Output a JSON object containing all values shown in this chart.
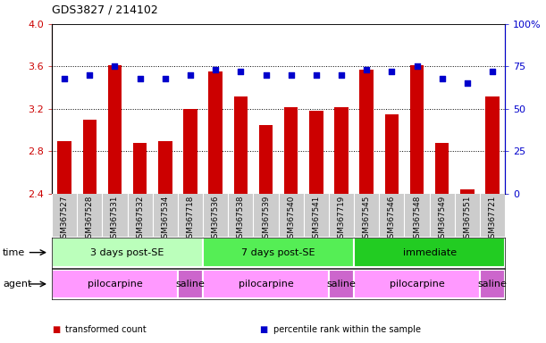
{
  "title": "GDS3827 / 214102",
  "samples": [
    "GSM367527",
    "GSM367528",
    "GSM367531",
    "GSM367532",
    "GSM367534",
    "GSM367718",
    "GSM367536",
    "GSM367538",
    "GSM367539",
    "GSM367540",
    "GSM367541",
    "GSM367719",
    "GSM367545",
    "GSM367546",
    "GSM367548",
    "GSM367549",
    "GSM367551",
    "GSM367721"
  ],
  "bar_values": [
    2.9,
    3.1,
    3.61,
    2.88,
    2.9,
    3.2,
    3.55,
    3.32,
    3.05,
    3.22,
    3.18,
    3.22,
    3.57,
    3.15,
    3.61,
    2.88,
    2.44,
    3.32
  ],
  "dot_values": [
    68,
    70,
    75,
    68,
    68,
    70,
    73,
    72,
    70,
    70,
    70,
    70,
    73,
    72,
    75,
    68,
    65,
    72
  ],
  "bar_color": "#cc0000",
  "dot_color": "#0000cc",
  "ylim_left": [
    2.4,
    4.0
  ],
  "ylim_right": [
    0,
    100
  ],
  "yticks_left": [
    2.4,
    2.8,
    3.2,
    3.6,
    4.0
  ],
  "yticks_right": [
    0,
    25,
    50,
    75,
    100
  ],
  "hlines": [
    2.8,
    3.2,
    3.6
  ],
  "time_groups": [
    {
      "label": "3 days post-SE",
      "start": 0,
      "end": 5,
      "color": "#bbffbb"
    },
    {
      "label": "7 days post-SE",
      "start": 6,
      "end": 11,
      "color": "#55ee55"
    },
    {
      "label": "immediate",
      "start": 12,
      "end": 17,
      "color": "#22cc22"
    }
  ],
  "agent_groups": [
    {
      "label": "pilocarpine",
      "start": 0,
      "end": 4,
      "color": "#ff99ff"
    },
    {
      "label": "saline",
      "start": 5,
      "end": 5,
      "color": "#cc66cc"
    },
    {
      "label": "pilocarpine",
      "start": 6,
      "end": 10,
      "color": "#ff99ff"
    },
    {
      "label": "saline",
      "start": 11,
      "end": 11,
      "color": "#cc66cc"
    },
    {
      "label": "pilocarpine",
      "start": 12,
      "end": 16,
      "color": "#ff99ff"
    },
    {
      "label": "saline",
      "start": 17,
      "end": 17,
      "color": "#cc66cc"
    }
  ],
  "legend_items": [
    {
      "label": "transformed count",
      "color": "#cc0000"
    },
    {
      "label": "percentile rank within the sample",
      "color": "#0000cc"
    }
  ],
  "bar_width": 0.55,
  "tick_label_fontsize": 6.5,
  "title_fontsize": 9,
  "names_row_color": "#cccccc",
  "names_sep_color": "#ffffff"
}
